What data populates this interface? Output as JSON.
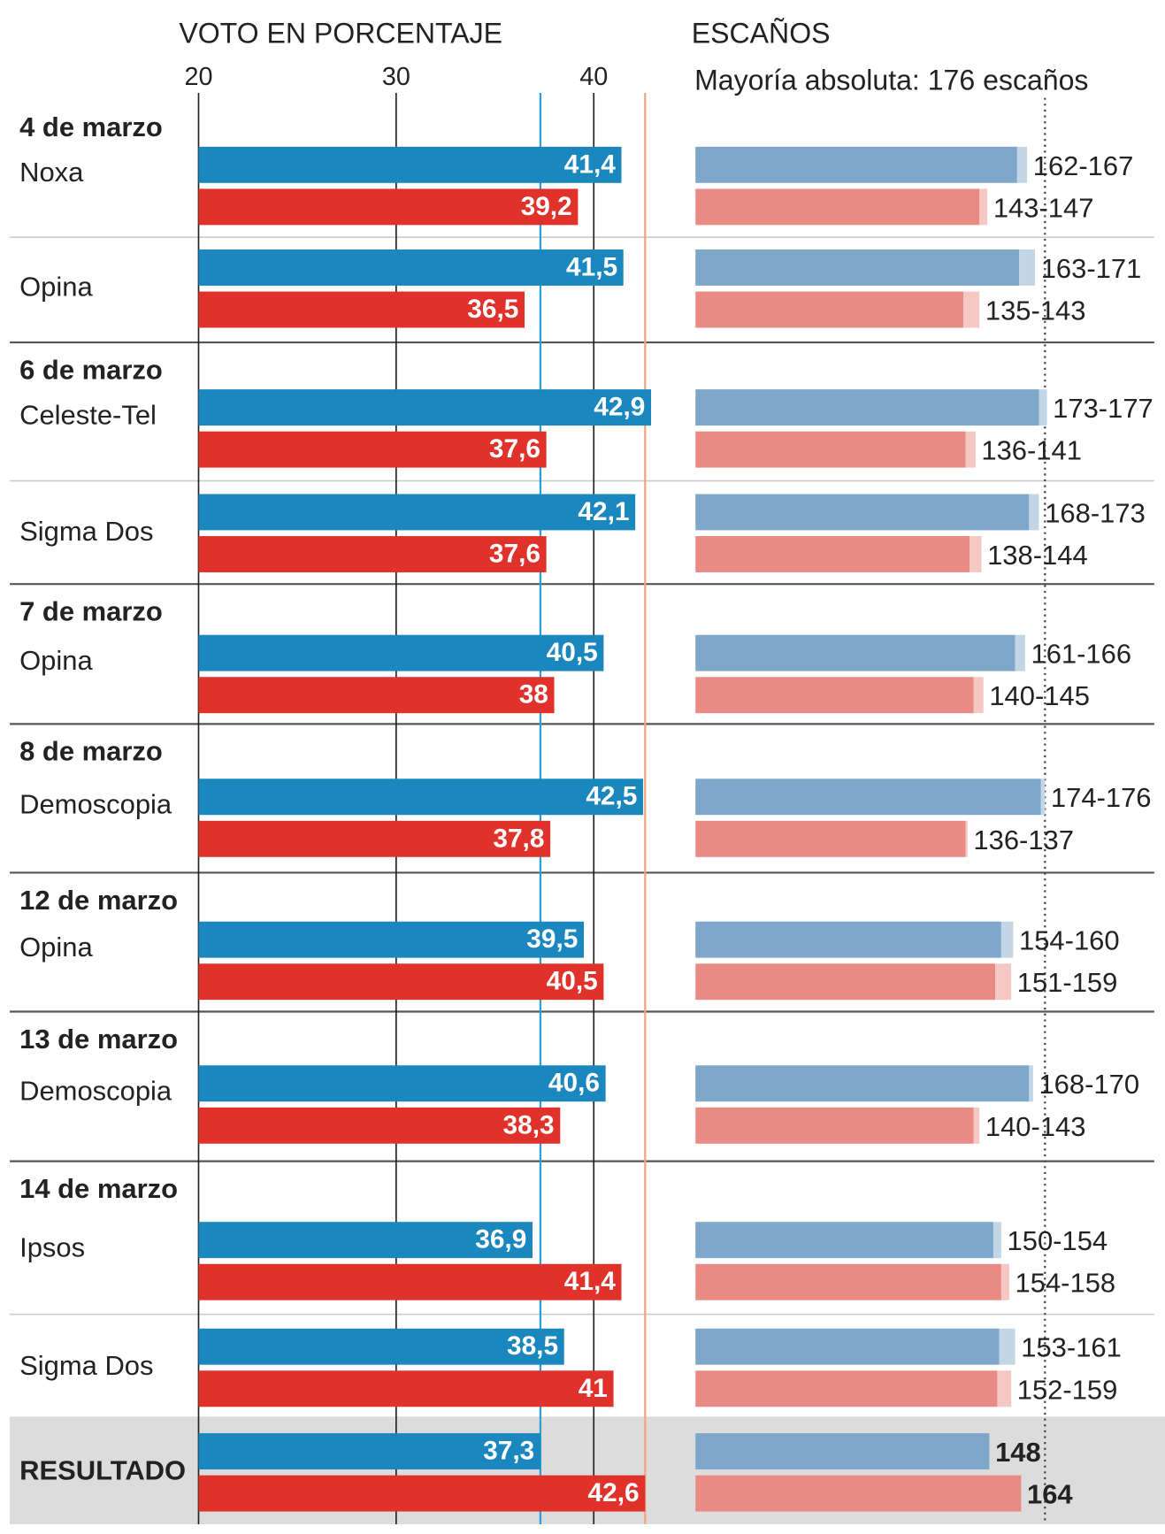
{
  "chart_data": [
    {
      "type": "bar",
      "title": "VOTO EN PORCENTAJE",
      "xlim": [
        20,
        44
      ],
      "xticks": [
        20,
        30,
        40
      ],
      "grid": true,
      "dates": [
        "4 de marzo",
        null,
        "6 de marzo",
        null,
        "7 de marzo",
        "8 de marzo",
        "12 de marzo",
        "13 de marzo",
        "14 de marzo",
        null,
        null
      ],
      "categories": [
        "Noxa",
        "Opina",
        "Celeste-Tel",
        "Sigma Dos",
        "Opina",
        "Demoscopia",
        "Opina",
        "Demoscopia",
        "Ipsos",
        "Sigma Dos",
        "RESULTADO"
      ],
      "series": [
        {
          "color": "#1a87bf",
          "line_color": "#2a9fd6",
          "values": [
            41.4,
            41.5,
            42.9,
            42.1,
            40.5,
            42.5,
            39.5,
            40.6,
            36.9,
            38.5,
            37.3
          ],
          "value_labels": [
            "41,4",
            "41,5",
            "42,9",
            "42,1",
            "40,5",
            "42,5",
            "39,5",
            "40,6",
            "36,9",
            "38,5",
            "37,3"
          ]
        },
        {
          "color": "#e0312b",
          "line_color": "#f2a57a",
          "values": [
            39.2,
            36.5,
            37.6,
            37.6,
            38,
            37.8,
            40.5,
            38.3,
            41.4,
            41,
            42.6
          ],
          "value_labels": [
            "39,2",
            "36,5",
            "37,6",
            "37,6",
            "38",
            "37,8",
            "40,5",
            "38,3",
            "41,4",
            "41",
            "42,6"
          ]
        }
      ]
    },
    {
      "type": "range",
      "title": "ESCAÑOS",
      "subtitle": "Mayoría absoluta: 176 escaños",
      "majority": 176,
      "xlim": [
        0,
        236
      ],
      "series": [
        {
          "color": "#7fa7c9",
          "range_color": "#c3d6e6",
          "low": [
            162,
            163,
            173,
            168,
            161,
            174,
            154,
            168,
            150,
            153,
            148
          ],
          "high": [
            167,
            171,
            177,
            173,
            166,
            176,
            160,
            170,
            154,
            161,
            null
          ],
          "value_labels": [
            "162-167",
            "163-171",
            "173-177",
            "168-173",
            "161-166",
            "174-176",
            "154-160",
            "168-170",
            "150-154",
            "153-161",
            "148"
          ]
        },
        {
          "color": "#e98a85",
          "range_color": "#f6c8c4",
          "low": [
            143,
            135,
            136,
            138,
            140,
            136,
            151,
            140,
            154,
            152,
            164
          ],
          "high": [
            147,
            143,
            141,
            144,
            145,
            137,
            159,
            143,
            158,
            159,
            null
          ],
          "value_labels": [
            "143-147",
            "135-143",
            "136-141",
            "138-144",
            "140-145",
            "136-137",
            "151-159",
            "140-143",
            "154-158",
            "152-159",
            "164"
          ]
        }
      ]
    }
  ]
}
